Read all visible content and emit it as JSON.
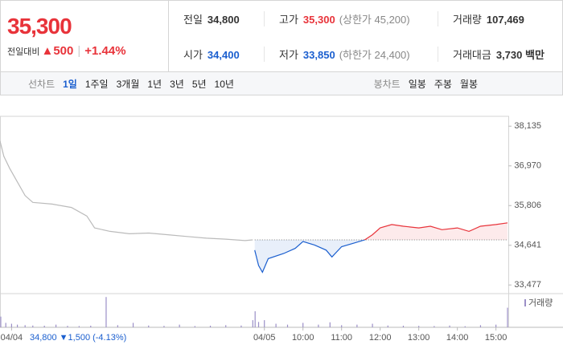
{
  "header": {
    "price": "35,300",
    "change_label": "전일대비",
    "change": "▲500",
    "change_pct": "+1.44%",
    "stats": [
      [
        {
          "label": "전일",
          "value": "34,800"
        },
        {
          "label": "고가",
          "value": "35,300",
          "note": "(상한가 45,200)"
        },
        {
          "label": "거래량",
          "value": "107,469"
        }
      ],
      [
        {
          "label": "시가",
          "value": "34,400"
        },
        {
          "label": "저가",
          "value": "33,850",
          "note": "(하한가 24,400)"
        },
        {
          "label": "거래대금",
          "value": "3,730 백만"
        }
      ]
    ]
  },
  "tabs": {
    "line": {
      "label": "선차트",
      "items": [
        "1일",
        "1주일",
        "3개월",
        "1년",
        "3년",
        "5년",
        "10년"
      ]
    },
    "candle": {
      "label": "봉차트",
      "items": [
        "일봉",
        "주봉",
        "월봉"
      ]
    }
  },
  "chart_data": {
    "type": "line",
    "series": [
      {
        "color": "#bbbbbb",
        "x": [
          2.15,
          2.25,
          2.4,
          2.6,
          2.8,
          3.0,
          3.5,
          4.0,
          4.4,
          4.6,
          5.0,
          5.5,
          6.0,
          6.5,
          7.0,
          7.5,
          8.0,
          8.5,
          8.7
        ],
        "values": [
          37700,
          37250,
          36900,
          36500,
          36100,
          35900,
          35850,
          35750,
          35500,
          35150,
          35050,
          34980,
          35000,
          34950,
          34900,
          34850,
          34820,
          34780,
          34800
        ]
      },
      {
        "color_up": "#e8333a",
        "color_down": "#1b5fcf",
        "x": [
          8.75,
          8.85,
          8.95,
          9.1,
          9.5,
          9.8,
          10.0,
          10.3,
          10.6,
          10.75,
          11.0,
          11.3,
          11.6,
          11.8,
          12.0,
          12.3,
          12.6,
          13.0,
          13.3,
          13.6,
          14.0,
          14.3,
          14.6,
          15.0,
          15.3
        ],
        "values": [
          34500,
          34050,
          33850,
          34250,
          34400,
          34550,
          34750,
          34650,
          34500,
          34300,
          34600,
          34700,
          34800,
          34950,
          35150,
          35250,
          35200,
          35150,
          35200,
          35100,
          35150,
          35050,
          35200,
          35250,
          35300
        ]
      }
    ],
    "reference": 34800,
    "annotation": {
      "value": "34,800",
      "change": "▼1,500",
      "pct": "(-4.13%)"
    },
    "volume": {
      "name": "거래량",
      "color": "#9b8fc7",
      "lim": [
        0,
        18000
      ],
      "x": [
        2.17,
        2.3,
        2.45,
        2.6,
        2.8,
        3.0,
        3.3,
        3.6,
        3.9,
        4.2,
        4.5,
        4.9,
        5.2,
        5.6,
        6.0,
        6.4,
        6.8,
        7.2,
        7.6,
        8.0,
        8.4,
        8.7,
        8.76,
        8.85,
        9.0,
        9.3,
        9.6,
        10.0,
        10.4,
        10.7,
        11.0,
        11.4,
        11.8,
        12.2,
        12.6,
        13.0,
        13.4,
        13.8,
        14.2,
        14.6,
        15.0,
        15.3
      ],
      "values": [
        6000,
        2500,
        2000,
        1500,
        1200,
        1000,
        900,
        1500,
        800,
        700,
        900,
        17000,
        1200,
        2500,
        1000,
        800,
        1500,
        700,
        900,
        1200,
        1000,
        4000,
        9000,
        3000,
        4000,
        2000,
        1500,
        2500,
        1500,
        2800,
        1200,
        1500,
        2000,
        1000,
        900,
        800,
        700,
        1000,
        600,
        1200,
        1500,
        11000
      ]
    },
    "xlim": [
      2.15,
      15.32
    ],
    "xticks": [
      {
        "value": 2.45,
        "label": "04/04"
      },
      {
        "value": 9.0,
        "label": "04/05"
      },
      {
        "value": 10,
        "label": "10:00"
      },
      {
        "value": 11,
        "label": "11:00"
      },
      {
        "value": 12,
        "label": "12:00"
      },
      {
        "value": 13,
        "label": "13:00"
      },
      {
        "value": 14,
        "label": "14:00"
      },
      {
        "value": 15,
        "label": "15:00"
      }
    ],
    "ylim": [
      33200,
      38400
    ],
    "yticks": [
      {
        "value": 33477,
        "label": "33,477"
      },
      {
        "value": 34641,
        "label": "34,641"
      },
      {
        "value": 35806,
        "label": "35,806"
      },
      {
        "value": 36970,
        "label": "36,970"
      },
      {
        "value": 38135,
        "label": "38,135"
      }
    ],
    "grid": false
  }
}
